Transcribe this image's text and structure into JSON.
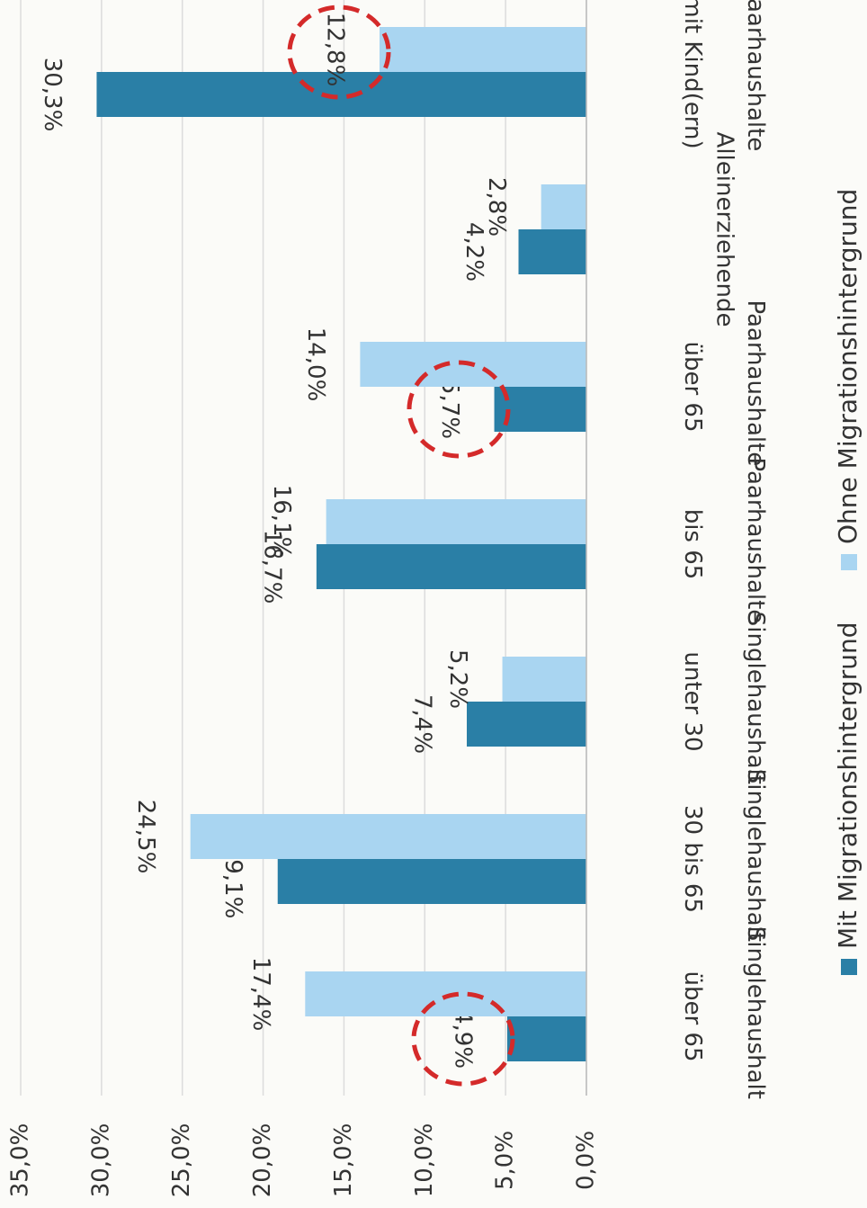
{
  "chart_data": {
    "type": "bar",
    "categories": [
      "Singlehaushalt über 65",
      "Singlehaushalt 30 bis 65",
      "Singlehaushalt unter 30",
      "Paarhaushalte bis 65",
      "Paarhaushalte über 65",
      "Alleinerziehende",
      "Paarhaushalte mit Kind(ern)"
    ],
    "series": [
      {
        "name": "Mit Migrationshintergrund",
        "color": "#2a7fa6",
        "values": [
          4.9,
          19.1,
          7.4,
          16.7,
          5.7,
          4.2,
          30.3
        ],
        "value_labels": [
          "4,9%",
          "19,1%",
          "7,4%",
          "16,7%",
          "5,7%",
          "4,2%",
          "30,3%"
        ]
      },
      {
        "name": "Ohne Migrationshintergrund",
        "color": "#a9d5f1",
        "values": [
          17.4,
          24.5,
          5.2,
          16.1,
          14.0,
          2.8,
          12.8
        ],
        "value_labels": [
          "17,4%",
          "24,5%",
          "5,2%",
          "16,1%",
          "14,0%",
          "2,8%",
          "12,8%"
        ]
      }
    ],
    "ylim": [
      0,
      35
    ],
    "yticks": [
      {
        "value": 0,
        "label": "0,0%"
      },
      {
        "value": 5,
        "label": "5,0%"
      },
      {
        "value": 10,
        "label": "10,0%"
      },
      {
        "value": 15,
        "label": "15,0%"
      },
      {
        "value": 20,
        "label": "20,0%"
      },
      {
        "value": 25,
        "label": "25,0%"
      },
      {
        "value": 30,
        "label": "30,0%"
      },
      {
        "value": 35,
        "label": "35,0%"
      }
    ],
    "grid": true
  }
}
